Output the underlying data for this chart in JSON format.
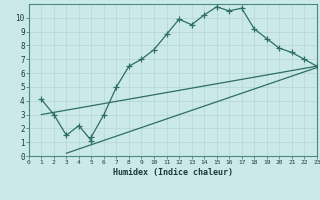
{
  "title": "",
  "xlabel": "Humidex (Indice chaleur)",
  "xlim": [
    0,
    23
  ],
  "ylim": [
    0,
    11
  ],
  "xticks": [
    0,
    1,
    2,
    3,
    4,
    5,
    6,
    7,
    8,
    9,
    10,
    11,
    12,
    13,
    14,
    15,
    16,
    17,
    18,
    19,
    20,
    21,
    22,
    23
  ],
  "yticks": [
    0,
    1,
    2,
    3,
    4,
    5,
    6,
    7,
    8,
    9,
    10
  ],
  "background_color": "#cce9ea",
  "grid_color": "#b8d8d8",
  "line_color": "#2d6e62",
  "line1_x": [
    1,
    2,
    3,
    4,
    5,
    5,
    6,
    7,
    8,
    9,
    10,
    11,
    12,
    13,
    14,
    15,
    16,
    17,
    18,
    19,
    20,
    21,
    22,
    23
  ],
  "line1_y": [
    4.1,
    3.0,
    1.5,
    2.2,
    1.1,
    1.4,
    3.0,
    5.0,
    6.5,
    7.0,
    7.7,
    8.8,
    9.9,
    9.5,
    10.2,
    10.8,
    10.5,
    10.7,
    9.2,
    8.5,
    7.8,
    7.5,
    7.0,
    6.5
  ],
  "line2_x": [
    1,
    23
  ],
  "line2_y": [
    3.0,
    6.5
  ],
  "line3_x": [
    3,
    23
  ],
  "line3_y": [
    0.2,
    6.4
  ],
  "marker": "+",
  "markersize": 4,
  "linewidth": 0.9
}
